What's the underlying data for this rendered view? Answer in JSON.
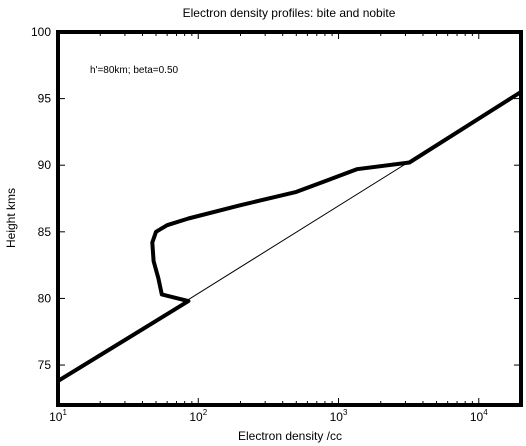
{
  "chart_data": {
    "type": "line",
    "title": "Electron density profiles: bite and nobite",
    "xlabel": "Electron density /cc",
    "ylabel": "Height kms",
    "annotation": "h'=80km; beta=0.50",
    "xscale": "log",
    "xlim": [
      10,
      20000
    ],
    "ylim": [
      72,
      100
    ],
    "x_ticks": [
      {
        "value": 10,
        "base": "10",
        "exp": "1"
      },
      {
        "value": 100,
        "base": "10",
        "exp": "2"
      },
      {
        "value": 1000,
        "base": "10",
        "exp": "3"
      },
      {
        "value": 10000,
        "base": "10",
        "exp": "4"
      }
    ],
    "y_ticks": [
      {
        "value": 75,
        "label": "75"
      },
      {
        "value": 80,
        "label": "80"
      },
      {
        "value": 85,
        "label": "85"
      },
      {
        "value": 90,
        "label": "90"
      },
      {
        "value": 95,
        "label": "95"
      },
      {
        "value": 100,
        "label": "100"
      }
    ],
    "grid": false,
    "series": [
      {
        "style": "thin",
        "color": "#000000",
        "x": [
          10,
          20000
        ],
        "y": [
          73.8,
          95.5
        ]
      },
      {
        "style": "thick",
        "color": "#000000",
        "x": [
          10,
          85,
          55,
          52,
          48,
          47,
          50,
          60,
          85,
          200,
          500,
          800,
          1350,
          3200,
          20000
        ],
        "y": [
          73.8,
          79.8,
          80.3,
          81.5,
          82.8,
          84.2,
          85.0,
          85.5,
          86.0,
          87.0,
          88.0,
          88.8,
          89.7,
          90.2,
          95.5
        ]
      }
    ]
  }
}
